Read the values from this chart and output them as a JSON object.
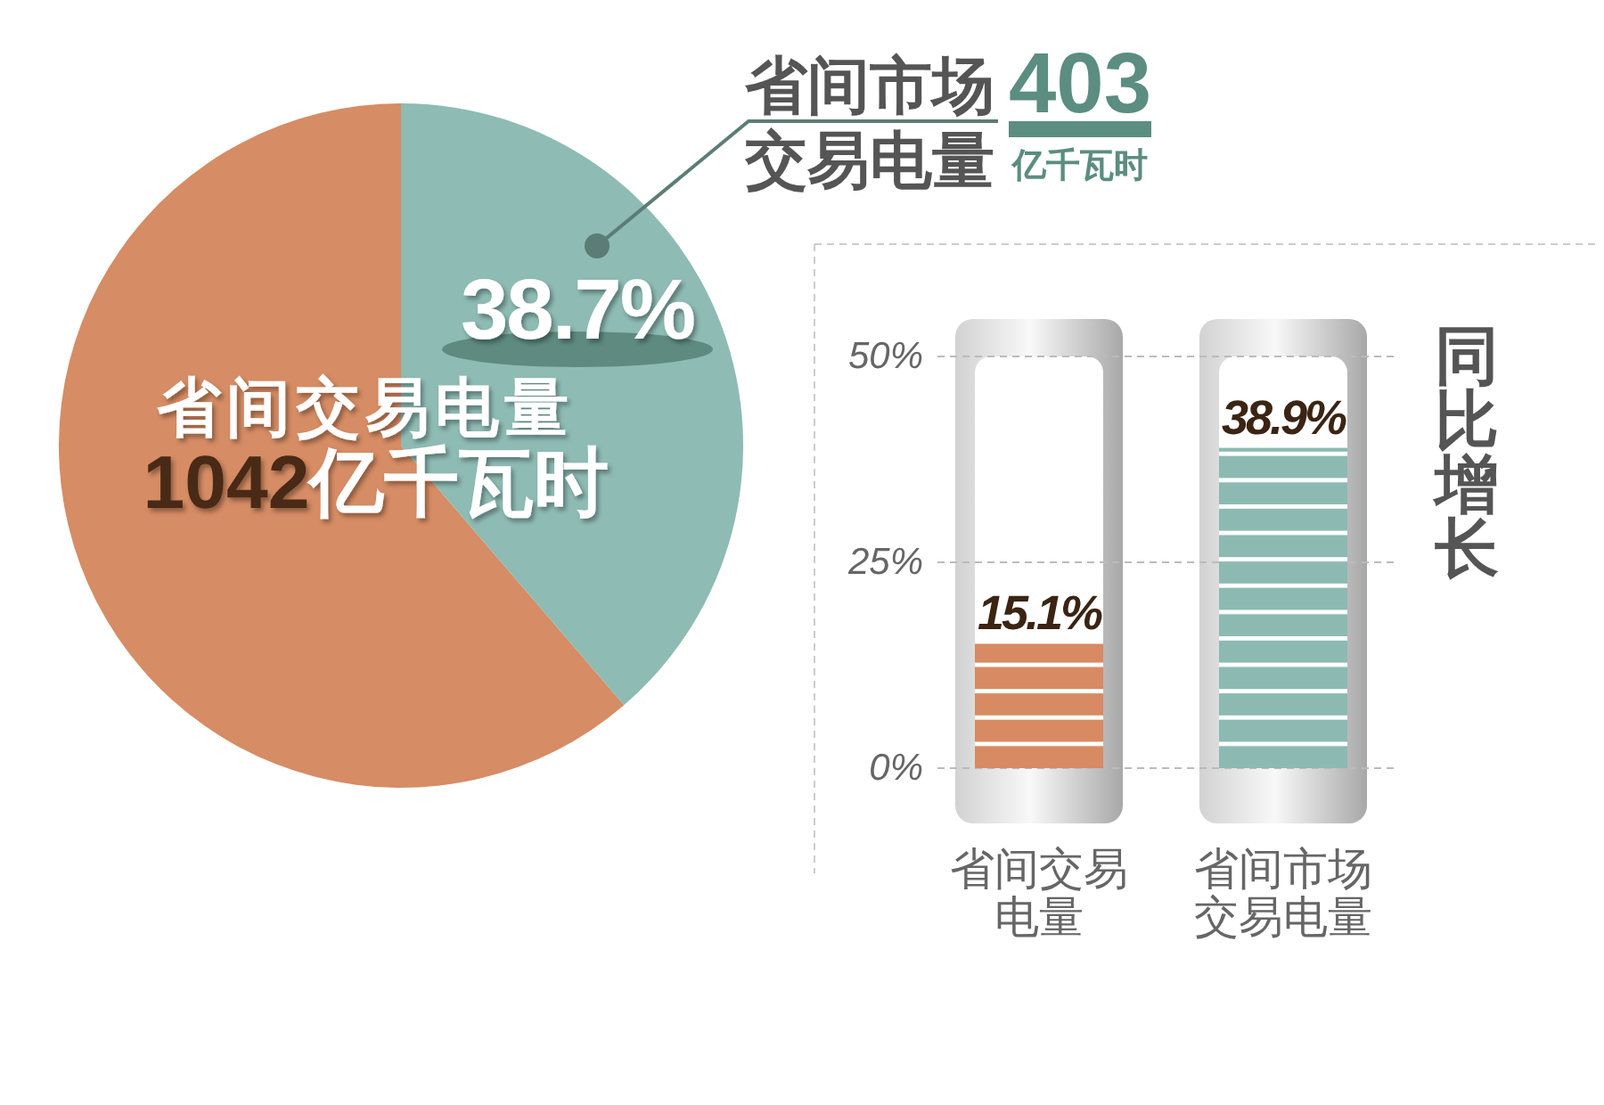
{
  "chart_data": [
    {
      "type": "pie",
      "categories": [
        "省间交易电量",
        "省间市场交易电量"
      ],
      "values": [
        61.3,
        38.7
      ],
      "colors": [
        "#d68c64",
        "#8ebbb4"
      ],
      "value_labels": [
        null,
        "38.7%"
      ],
      "annotations": [
        "1042亿千瓦时",
        "403亿千瓦时"
      ]
    },
    {
      "type": "bar",
      "categories": [
        "省间交易电量",
        "省间市场交易电量"
      ],
      "values": [
        15.1,
        38.9
      ],
      "colors": [
        "#d88a62",
        "#8cbab2"
      ],
      "ylim": [
        0,
        50
      ],
      "yticks": [
        {
          "value": 0,
          "label": "0%"
        },
        {
          "value": 25,
          "label": "25%"
        },
        {
          "value": 50,
          "label": "50%"
        }
      ],
      "ylabel": "同比增长",
      "grid": "y",
      "value_labels": [
        "15.1%",
        "38.9%"
      ]
    }
  ]
}
